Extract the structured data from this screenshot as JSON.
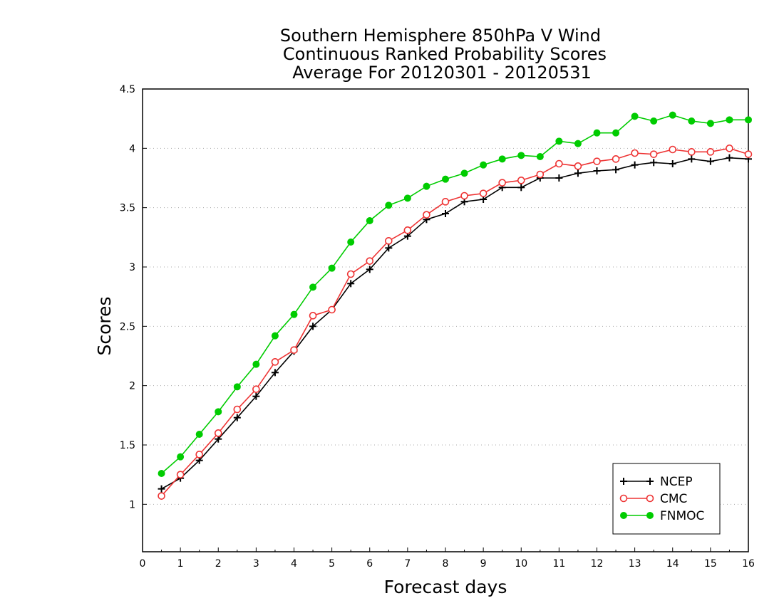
{
  "chart_data": {
    "type": "line",
    "title": [
      "Southern Hemisphere 850hPa V Wind",
      "Continuous Ranked Probability Scores",
      "Average For 20120301 - 20120531"
    ],
    "xlabel": "Forecast days",
    "ylabel": "Scores",
    "xlim": [
      0,
      16
    ],
    "ylim": [
      0.6,
      4.5
    ],
    "xticks": [
      "0",
      "1",
      "2",
      "3",
      "4",
      "5",
      "6",
      "7",
      "8",
      "9",
      "10",
      "11",
      "12",
      "13",
      "14",
      "15",
      "16"
    ],
    "yticks": [
      "1",
      "1.5",
      "2",
      "2.5",
      "3",
      "3.5",
      "4",
      "4.5"
    ],
    "grid": "horizontal dotted",
    "legend_position": "bottom-right",
    "x": [
      0.5,
      1,
      1.5,
      2,
      2.5,
      3,
      3.5,
      4,
      4.5,
      5,
      5.5,
      6,
      6.5,
      7,
      7.5,
      8,
      8.5,
      9,
      9.5,
      10,
      10.5,
      11,
      11.5,
      12,
      12.5,
      13,
      13.5,
      14,
      14.5,
      15,
      15.5,
      16
    ],
    "series": [
      {
        "name": "NCEP",
        "color": "#000000",
        "marker": "plus",
        "values": [
          1.13,
          1.22,
          1.37,
          1.55,
          1.73,
          1.91,
          2.11,
          2.29,
          2.5,
          2.64,
          2.86,
          2.98,
          3.16,
          3.26,
          3.4,
          3.45,
          3.55,
          3.57,
          3.67,
          3.67,
          3.75,
          3.75,
          3.79,
          3.81,
          3.82,
          3.86,
          3.88,
          3.87,
          3.91,
          3.89,
          3.92,
          3.91
        ]
      },
      {
        "name": "CMC",
        "color": "#ee3333",
        "marker": "open-circle",
        "values": [
          1.07,
          1.25,
          1.42,
          1.6,
          1.8,
          1.97,
          2.2,
          2.3,
          2.59,
          2.64,
          2.94,
          3.05,
          3.22,
          3.31,
          3.44,
          3.55,
          3.6,
          3.62,
          3.71,
          3.73,
          3.78,
          3.87,
          3.85,
          3.89,
          3.91,
          3.96,
          3.95,
          3.99,
          3.97,
          3.97,
          4.0,
          3.95
        ]
      },
      {
        "name": "FNMOC",
        "color": "#00cc00",
        "marker": "filled-circle",
        "values": [
          1.26,
          1.4,
          1.59,
          1.78,
          1.99,
          2.18,
          2.42,
          2.6,
          2.83,
          2.99,
          3.21,
          3.39,
          3.52,
          3.58,
          3.68,
          3.74,
          3.79,
          3.86,
          3.91,
          3.94,
          3.93,
          4.06,
          4.04,
          4.13,
          4.13,
          4.27,
          4.23,
          4.28,
          4.23,
          4.21,
          4.24,
          4.24
        ]
      }
    ]
  }
}
